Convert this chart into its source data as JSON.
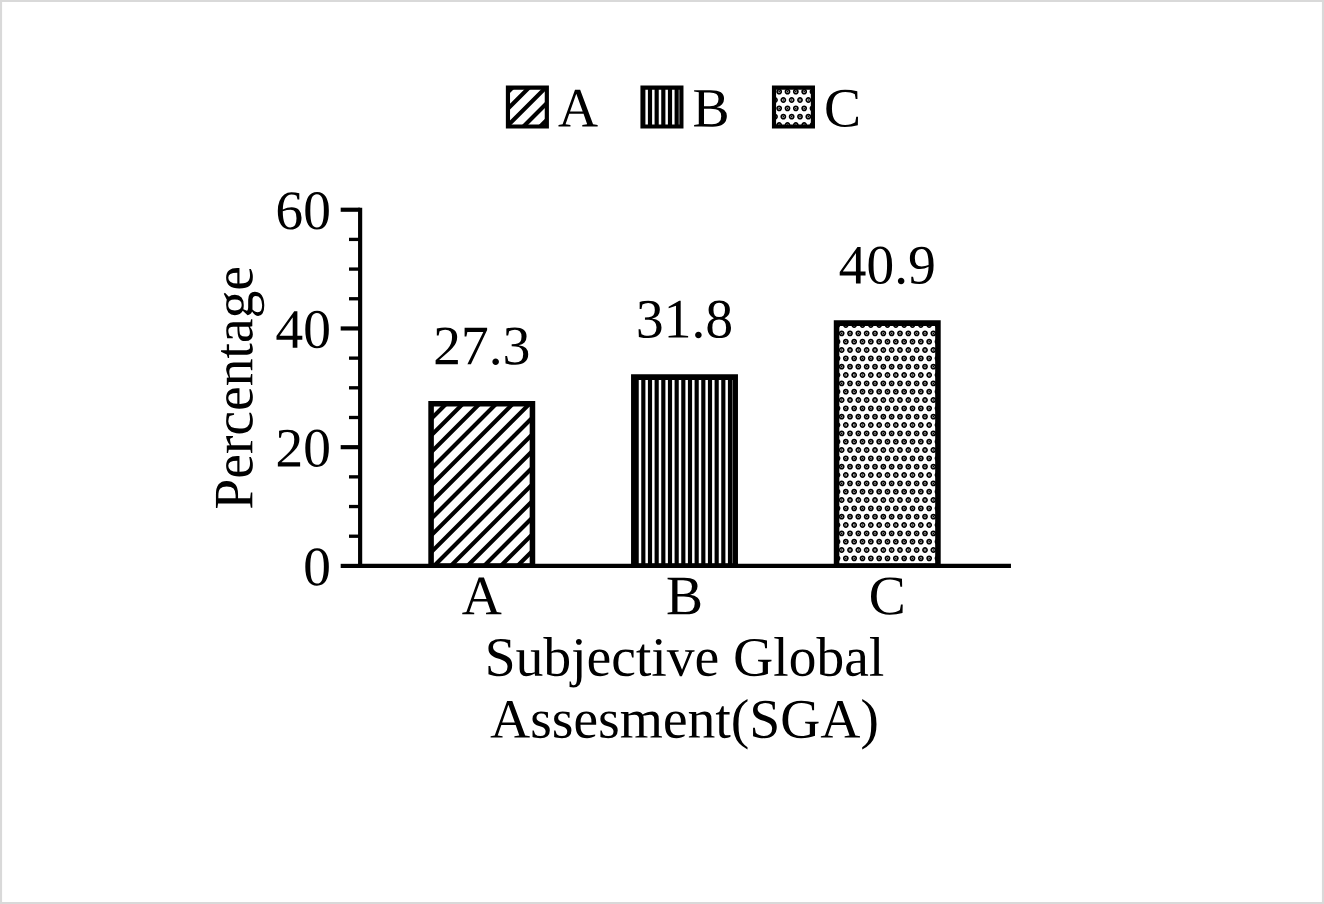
{
  "chart_data": {
    "type": "bar",
    "xlabel": "Subjective Global\nAssesment(SGA)",
    "ylabel": "Percentage",
    "categories": [
      "A",
      "B",
      "C"
    ],
    "series": [
      {
        "name": "A",
        "color": "#000000",
        "values": [
          27.3,
          null,
          null
        ]
      },
      {
        "name": "B",
        "color": "#000000",
        "values": [
          null,
          31.8,
          null
        ]
      },
      {
        "name": "C",
        "color": "#000000",
        "values": [
          null,
          null,
          40.9
        ]
      }
    ],
    "ylim": [
      0,
      60
    ],
    "yticks": [
      0,
      20,
      40,
      60
    ],
    "grid": false,
    "legend": "top",
    "data_labels": true
  }
}
